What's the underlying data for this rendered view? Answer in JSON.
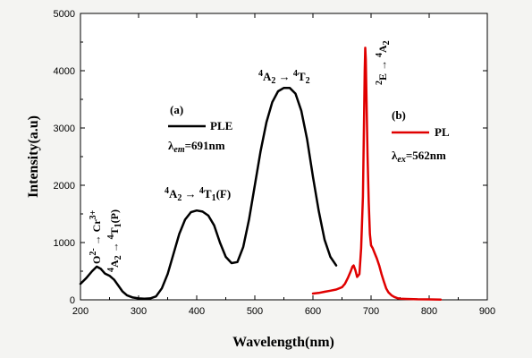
{
  "chart_data": {
    "type": "line",
    "xlabel": "Wavelength(nm)",
    "ylabel": "Intensity(a.u)",
    "xlim": [
      200,
      900
    ],
    "ylim": [
      0,
      5000
    ],
    "x_ticks": [
      200,
      300,
      400,
      500,
      600,
      700,
      800,
      900
    ],
    "y_ticks": [
      0,
      1000,
      2000,
      3000,
      4000,
      5000
    ],
    "grid": false,
    "legend": [
      {
        "label": "PLE",
        "color": "#000000",
        "panel": "(a)",
        "condition_sym": "λ",
        "condition_sub": "em",
        "condition_val": "=691nm"
      },
      {
        "label": "PL",
        "color": "#e00000",
        "panel": "(b)",
        "condition_sym": "λ",
        "condition_sub": "ex",
        "condition_val": "=562nm"
      }
    ],
    "annotations": [
      {
        "id": "o-cr",
        "text": "O2- → Cr3+",
        "at_x": 232
      },
      {
        "id": "t1p",
        "text": "4A2 → 4T1(P)",
        "at_x": 255
      },
      {
        "id": "t1f",
        "text": "4A2 → 4T1(F)",
        "at_x": 406
      },
      {
        "id": "t2",
        "text": "4A2 → 4T2",
        "at_x": 562
      },
      {
        "id": "e-a2",
        "text": "2E → 4A2",
        "at_x": 691
      }
    ],
    "series": [
      {
        "name": "PLE",
        "color": "#000000",
        "x": [
          200,
          210,
          220,
          228,
          235,
          242,
          250,
          258,
          265,
          272,
          280,
          290,
          300,
          310,
          320,
          330,
          340,
          350,
          360,
          370,
          380,
          390,
          400,
          410,
          420,
          430,
          440,
          450,
          460,
          470,
          480,
          490,
          500,
          510,
          520,
          530,
          540,
          550,
          560,
          570,
          580,
          590,
          600,
          610,
          620,
          630,
          640
        ],
        "y": [
          280,
          380,
          500,
          580,
          540,
          460,
          420,
          350,
          250,
          150,
          80,
          40,
          25,
          20,
          25,
          60,
          200,
          450,
          800,
          1150,
          1400,
          1530,
          1560,
          1540,
          1470,
          1300,
          1000,
          750,
          640,
          660,
          920,
          1400,
          2000,
          2600,
          3100,
          3450,
          3640,
          3700,
          3700,
          3600,
          3300,
          2800,
          2150,
          1550,
          1050,
          750,
          600
        ]
      },
      {
        "name": "PL",
        "color": "#e00000",
        "x": [
          600,
          610,
          620,
          630,
          640,
          650,
          655,
          660,
          665,
          668,
          670,
          673,
          676,
          680,
          683,
          686,
          688,
          689,
          690,
          691,
          692,
          694,
          696,
          698,
          700,
          703,
          706,
          710,
          714,
          718,
          722,
          726,
          730,
          735,
          740,
          745,
          750,
          760,
          780,
          800,
          820
        ],
        "y": [
          110,
          120,
          140,
          160,
          180,
          220,
          280,
          380,
          500,
          580,
          600,
          520,
          400,
          450,
          900,
          1800,
          3200,
          4000,
          4400,
          4200,
          3600,
          2500,
          1700,
          1150,
          950,
          900,
          820,
          720,
          600,
          450,
          320,
          200,
          130,
          80,
          50,
          30,
          20,
          15,
          10,
          8,
          5
        ]
      }
    ]
  }
}
